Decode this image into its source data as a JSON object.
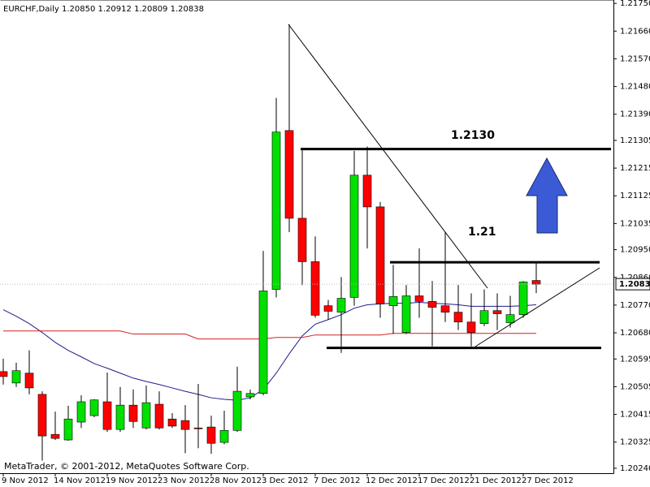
{
  "chart_data": {
    "type": "candlestick",
    "title": "EURCHF,Daily  1.20850 1.20912 1.20809 1.20838",
    "footer": "MetaTrader, © 2001-2012, MetaQuotes Software Corp.",
    "categories": [
      "9 Nov 2012",
      null,
      null,
      null,
      "14 Nov 2012",
      null,
      null,
      null,
      "19 Nov 2012",
      null,
      null,
      null,
      "23 Nov 2012",
      null,
      null,
      null,
      "28 Nov 2012",
      null,
      null,
      null,
      "3 Dec 2012",
      null,
      null,
      null,
      "7 Dec 2012",
      null,
      null,
      null,
      "12 Dec 2012",
      null,
      null,
      null,
      "17 Dec 2012",
      null,
      null,
      null,
      "21 Dec 2012",
      null,
      null,
      null,
      "27 Dec 2012",
      null
    ],
    "open": [
      1.20554,
      1.20517,
      1.20549,
      1.2048,
      1.2035,
      1.20332,
      1.2039,
      1.20411,
      1.20456,
      1.20366,
      1.20445,
      1.20371,
      1.20448,
      1.204,
      1.20395,
      1.20371,
      1.20374,
      1.20324,
      1.20363,
      1.20472,
      1.20483,
      1.20821,
      1.21337,
      1.21052,
      1.20911,
      1.20768,
      1.20747,
      1.20795,
      1.21192,
      1.21089,
      1.20768,
      1.20681,
      1.208,
      1.20782,
      1.20768,
      1.20747,
      1.20715,
      1.2071,
      1.20752,
      1.20713,
      1.20739,
      1.2085
    ],
    "high": [
      1.20596,
      1.20583,
      1.20623,
      1.2049,
      1.20424,
      1.20443,
      1.20477,
      1.20464,
      1.20551,
      1.20504,
      1.20496,
      1.20509,
      1.2049,
      1.20419,
      1.20445,
      1.20514,
      1.20411,
      1.20427,
      1.2057,
      1.20496,
      1.20946,
      1.21443,
      1.21682,
      1.21277,
      1.20993,
      1.20787,
      1.20861,
      1.21271,
      1.21285,
      1.21105,
      1.20901,
      1.20835,
      1.20954,
      1.20848,
      1.21007,
      1.20835,
      1.20808,
      1.20821,
      1.20808,
      1.208,
      1.20848,
      1.20912
    ],
    "low": [
      1.20512,
      1.20504,
      1.2048,
      1.20265,
      1.20332,
      1.20329,
      1.20371,
      1.20406,
      1.20358,
      1.20358,
      1.20371,
      1.20366,
      1.20366,
      1.20371,
      1.20289,
      1.20305,
      1.20287,
      1.20318,
      1.20358,
      1.20464,
      1.20477,
      1.20795,
      1.21007,
      1.20835,
      1.20729,
      1.20723,
      1.20615,
      1.20768,
      1.20954,
      1.20729,
      1.20676,
      1.20676,
      1.20729,
      1.20636,
      1.20715,
      1.20689,
      1.20636,
      1.20702,
      1.20689,
      1.20697,
      1.20729,
      1.20809
    ],
    "close": [
      1.20538,
      1.20557,
      1.20501,
      1.20345,
      1.20337,
      1.204,
      1.20456,
      1.20462,
      1.20366,
      1.20445,
      1.20392,
      1.20453,
      1.20371,
      1.20377,
      1.20366,
      1.20369,
      1.20321,
      1.20363,
      1.2049,
      1.20483,
      1.20816,
      1.21332,
      1.21052,
      1.20911,
      1.20737,
      1.2075,
      1.20792,
      1.21192,
      1.21089,
      1.20774,
      1.20798,
      1.208,
      1.20782,
      1.20763,
      1.20747,
      1.20715,
      1.20681,
      1.20752,
      1.20742,
      1.20739,
      1.20845,
      1.20838
    ],
    "up_color": "#00e000",
    "down_color": "#ff0000",
    "moving_averages": [
      {
        "color": "#1c1c8c",
        "values": [
          1.20755,
          1.20734,
          1.2071,
          1.20681,
          1.20649,
          1.20623,
          1.20602,
          1.2058,
          1.20565,
          1.20549,
          1.20533,
          1.20522,
          1.20512,
          1.20501,
          1.2049,
          1.2048,
          1.20469,
          1.20464,
          1.20461,
          1.20469,
          1.20496,
          1.20549,
          1.20612,
          1.2067,
          1.20708,
          1.20723,
          1.20739,
          1.2076,
          1.20771,
          1.20774,
          1.20776,
          1.20776,
          1.20779,
          1.20776,
          1.20774,
          1.20771,
          1.20766,
          1.20766,
          1.20766,
          1.20766,
          1.20768,
          1.20771
        ]
      },
      {
        "color": "#d42020",
        "values": [
          1.20686,
          1.20686,
          1.20686,
          1.20686,
          1.20686,
          1.20686,
          1.20686,
          1.20686,
          1.20686,
          1.20686,
          1.20676,
          1.20676,
          1.20676,
          1.20676,
          1.20676,
          1.2066,
          1.2066,
          1.2066,
          1.2066,
          1.2066,
          1.2066,
          1.20665,
          1.20665,
          1.20665,
          1.20673,
          1.20673,
          1.20673,
          1.20673,
          1.20673,
          1.20673,
          1.20678,
          1.20678,
          1.20678,
          1.20678,
          1.20678,
          1.20678,
          1.20678,
          1.20678,
          1.20678,
          1.20678,
          1.20678,
          1.20678
        ]
      }
    ],
    "levels": [
      {
        "value": 1.21277,
        "label": "1.2130"
      },
      {
        "value": 1.20909,
        "label": "1.21"
      },
      {
        "value": 1.20631
      }
    ],
    "current_price": 1.20838,
    "ylim": [
      1.20224,
      1.21761
    ],
    "yticks": [
      {
        "value": 1.2175,
        "label": "1.21750"
      },
      {
        "value": 1.2166,
        "label": "1.21660"
      },
      {
        "value": 1.2157,
        "label": "1.21570"
      },
      {
        "value": 1.2148,
        "label": "1.21480"
      },
      {
        "value": 1.2139,
        "label": "1.21390"
      },
      1.21305,
      1.21215,
      1.21125,
      1.21035,
      {
        "value": 1.2095,
        "label": "1.20950"
      },
      {
        "value": 1.2086,
        "label": "1.20860"
      },
      {
        "value": 1.2077,
        "label": "1.20770"
      },
      {
        "value": 1.2068,
        "label": "1.20680"
      },
      1.20595,
      1.20505,
      1.20415,
      1.20325,
      {
        "value": 1.2024,
        "label": "1.20240"
      }
    ]
  }
}
